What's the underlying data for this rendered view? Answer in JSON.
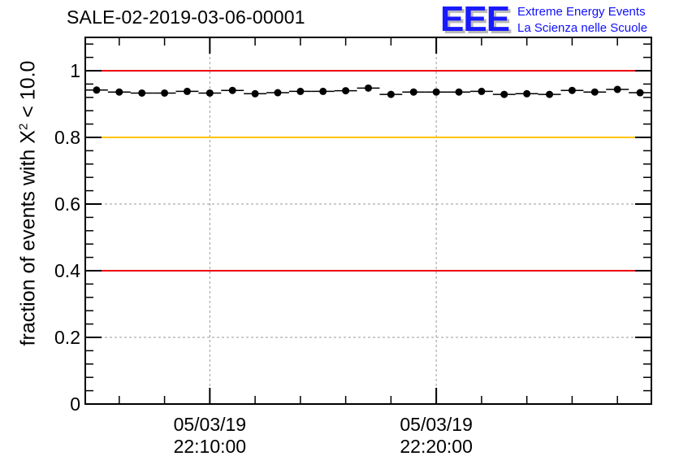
{
  "title": "SALE-02-2019-03-06-00001",
  "logo": {
    "mark": "EEE",
    "line1": "Extreme Energy Events",
    "line2": "La Scienza nelle Scuole"
  },
  "chart_data": {
    "type": "scatter",
    "title": "SALE-02-2019-03-06-00001",
    "ylabel_prefix": "fraction of events with X",
    "ylabel_sup": "2",
    "ylabel_suffix": " < 10.0",
    "xlabel": "",
    "xlim": [
      "05/03/19 22:04:30",
      "05/03/19 22:29:30"
    ],
    "ylim": [
      0,
      1.1
    ],
    "yticks": [
      0,
      0.2,
      0.4,
      0.6,
      0.8,
      1
    ],
    "ytick_labels": [
      "0",
      "0.2",
      "0.4",
      "0.6",
      "0.8",
      "1"
    ],
    "xtick_labels": [
      {
        "time": "05/03/19 22:10:00",
        "date": "05/03/19",
        "clock": "22:10:00"
      },
      {
        "time": "05/03/19 22:20:00",
        "date": "05/03/19",
        "clock": "22:20:00"
      }
    ],
    "grid": true,
    "reference_lines": [
      {
        "y": 1.0,
        "color": "#e8000b"
      },
      {
        "y": 0.8,
        "color": "#ffc400"
      },
      {
        "y": 0.4,
        "color": "#e8000b"
      }
    ],
    "bin_width_minutes": 1,
    "series": [
      {
        "x": [
          "22:05:00",
          "22:06:00",
          "22:07:00",
          "22:08:00",
          "22:09:00",
          "22:10:00",
          "22:11:00",
          "22:12:00",
          "22:13:00",
          "22:14:00",
          "22:15:00",
          "22:16:00",
          "22:17:00",
          "22:18:00",
          "22:19:00",
          "22:20:00",
          "22:21:00",
          "22:22:00",
          "22:23:00",
          "22:24:00",
          "22:25:00",
          "22:26:00",
          "22:27:00",
          "22:28:00",
          "22:29:00"
        ],
        "values": [
          0.942,
          0.936,
          0.933,
          0.933,
          0.938,
          0.933,
          0.941,
          0.931,
          0.934,
          0.938,
          0.938,
          0.94,
          0.948,
          0.929,
          0.936,
          0.936,
          0.936,
          0.938,
          0.929,
          0.931,
          0.929,
          0.941,
          0.936,
          0.944,
          0.934
        ],
        "color": "#000000"
      }
    ]
  }
}
